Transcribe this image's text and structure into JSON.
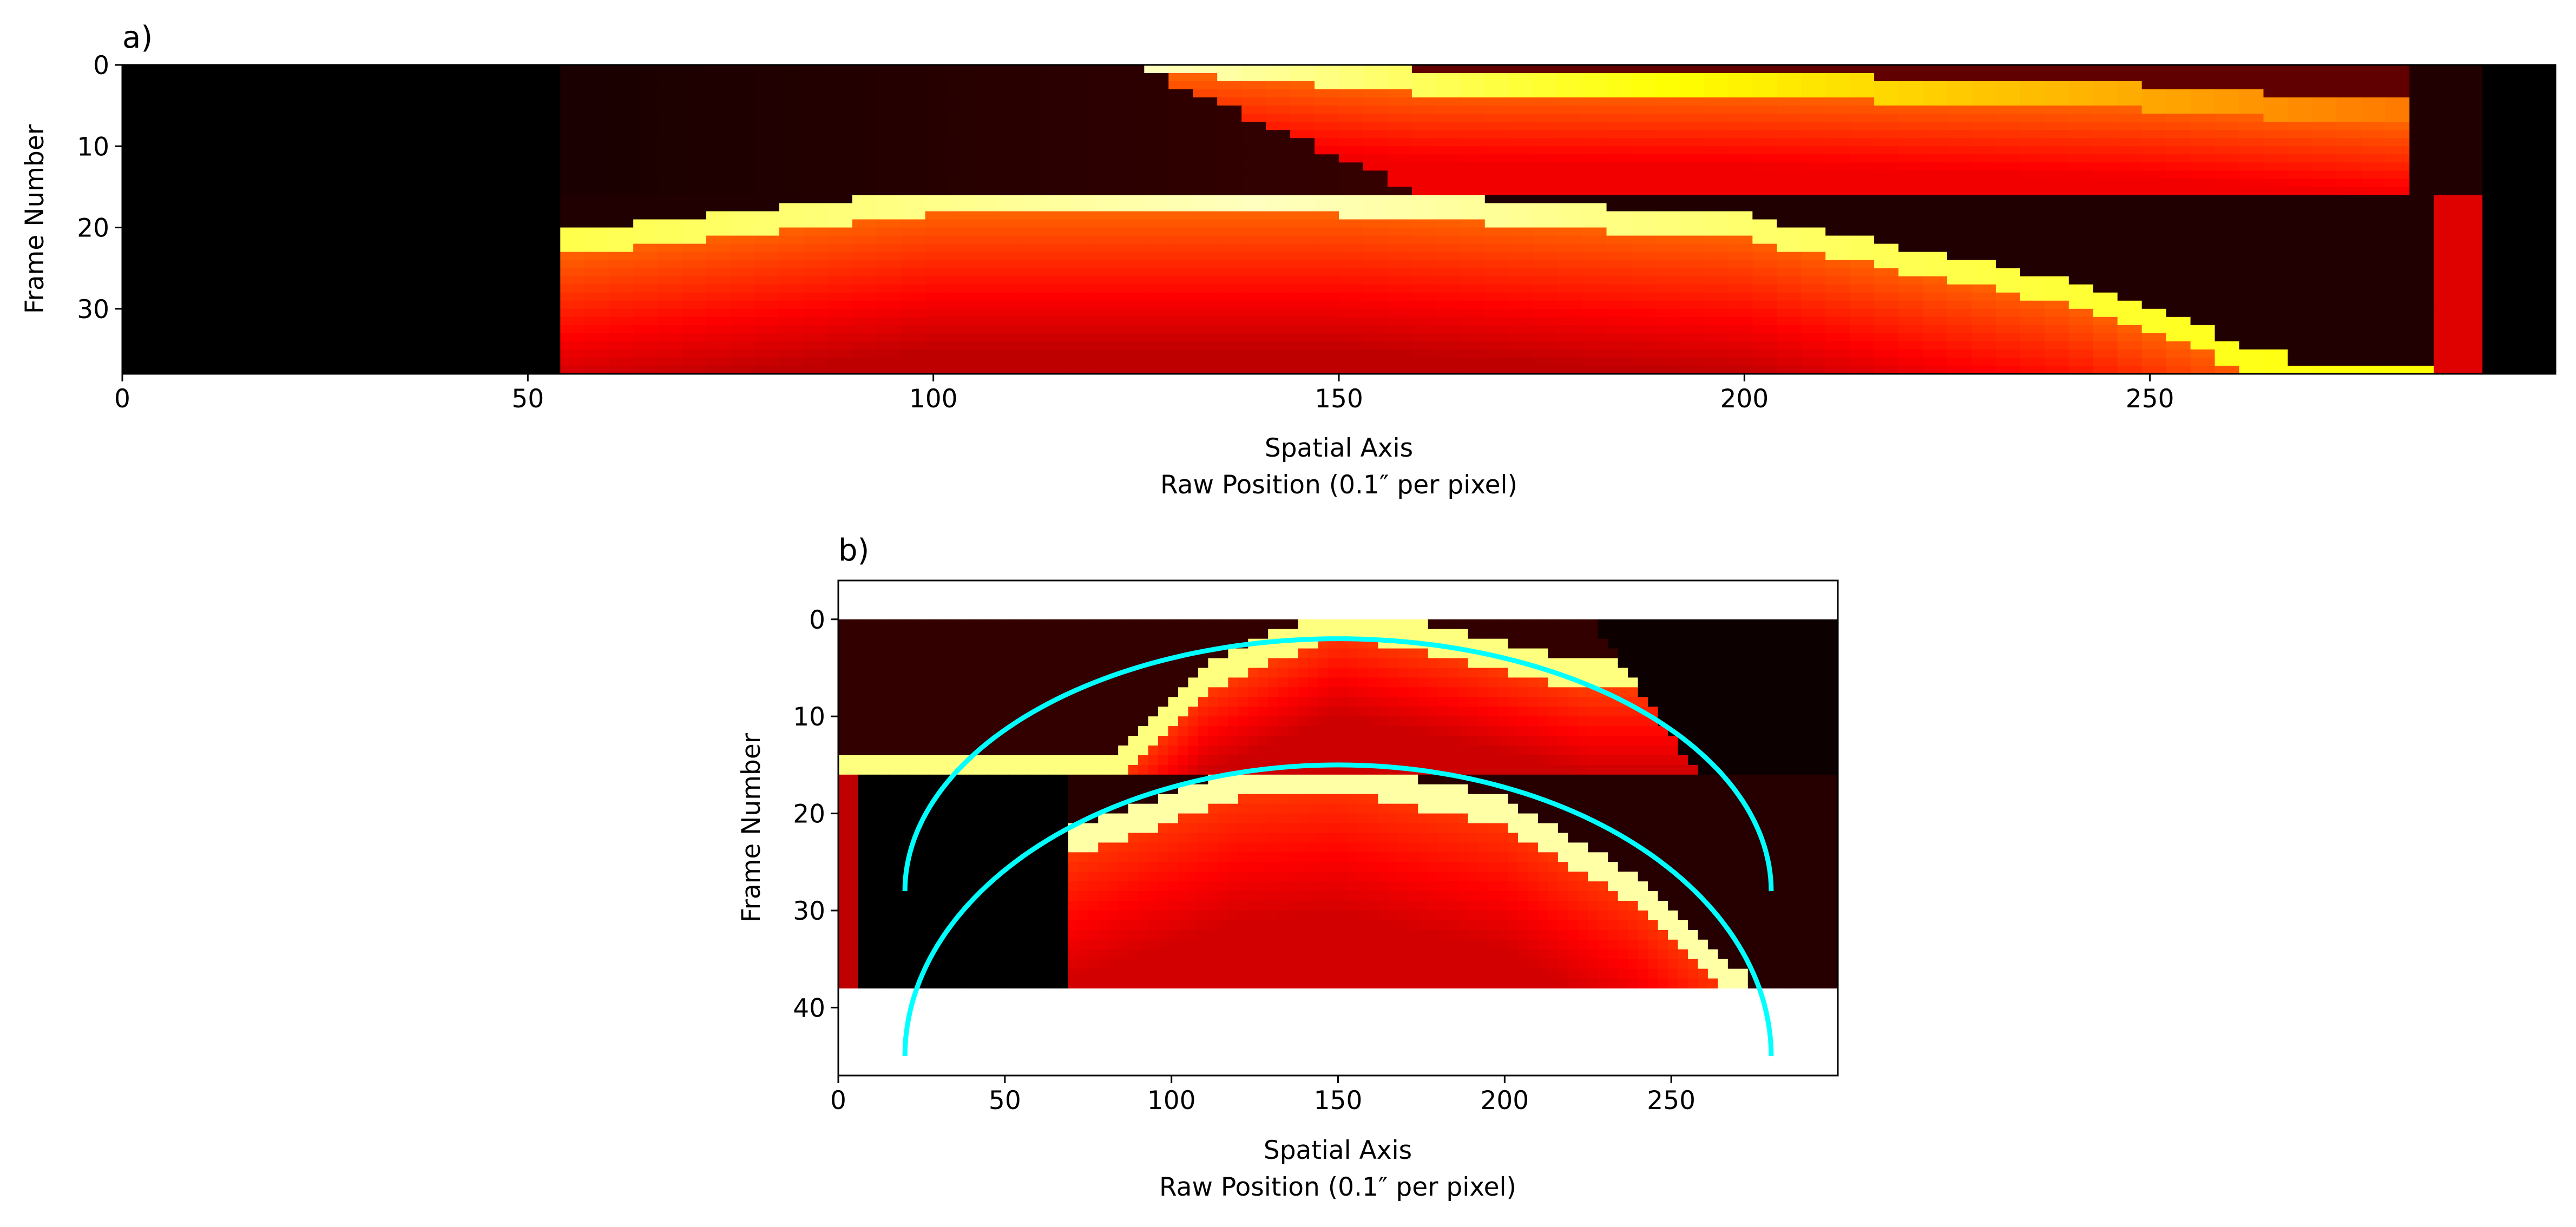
{
  "chart_data": [
    {
      "panel_label": "a)",
      "type": "heatmap",
      "colormap": "gist_heat",
      "xlabel": "Spatial Axis",
      "xlabel2": "Raw Position (0.1″ per pixel)",
      "ylabel": "Frame Number",
      "xlim": [
        0,
        300
      ],
      "ylim": [
        38,
        0
      ],
      "xticks": [
        {
          "v": 0,
          "label": "0"
        },
        {
          "v": 50,
          "label": "50"
        },
        {
          "v": 100,
          "label": "100"
        },
        {
          "v": 150,
          "label": "150"
        },
        {
          "v": 200,
          "label": "200"
        },
        {
          "v": 250,
          "label": "250"
        }
      ],
      "yticks": [
        {
          "v": 0,
          "label": "0"
        },
        {
          "v": 10,
          "label": "10"
        },
        {
          "v": 20,
          "label": "20"
        },
        {
          "v": 30,
          "label": "30"
        }
      ],
      "image_data": {
        "valid_x_range": [
          55,
          290
        ],
        "segments": [
          {
            "frames": [
              0,
              16
            ],
            "ridge": [
              [
                134,
                0
              ],
              [
                160,
                2
              ],
              [
                200,
                2.5
              ],
              [
                250,
                4
              ],
              [
                280,
                6
              ]
            ],
            "lower_edge": [
              [
                125,
                0
              ],
              [
                160,
                16
              ]
            ],
            "right_edge": 282
          },
          {
            "frames": [
              16,
              38
            ],
            "ridge": [
              [
                55,
                22
              ],
              [
                100,
                17
              ],
              [
                150,
                17
              ],
              [
                200,
                20
              ],
              [
                240,
                28
              ],
              [
                265,
                37
              ]
            ],
            "right_limit": 268
          }
        ]
      }
    },
    {
      "panel_label": "b)",
      "type": "heatmap",
      "colormap": "gist_heat",
      "xlabel": "Spatial Axis",
      "xlabel2": "Raw Position (0.1″ per pixel)",
      "ylabel": "Frame Number",
      "xlim": [
        0,
        300
      ],
      "ylim": [
        47,
        -4
      ],
      "xticks": [
        {
          "v": 0,
          "label": "0"
        },
        {
          "v": 50,
          "label": "50"
        },
        {
          "v": 100,
          "label": "100"
        },
        {
          "v": 150,
          "label": "150"
        },
        {
          "v": 200,
          "label": "200"
        },
        {
          "v": 250,
          "label": "250"
        }
      ],
      "yticks": [
        {
          "v": 0,
          "label": "0"
        },
        {
          "v": 10,
          "label": "10"
        },
        {
          "v": 20,
          "label": "20"
        },
        {
          "v": 30,
          "label": "30"
        },
        {
          "v": 40,
          "label": "40"
        }
      ],
      "image_extent": {
        "x": [
          0,
          300
        ],
        "y": [
          0,
          38
        ]
      },
      "image_data": {
        "segments": [
          {
            "frames": [
              0,
              16
            ],
            "ridge": [
              [
                80,
                16
              ],
              [
                110,
                6
              ],
              [
                150,
                0
              ],
              [
                190,
                3
              ],
              [
                225,
                6
              ]
            ],
            "right_edge": 226
          },
          {
            "frames": [
              16,
              38
            ],
            "left_black": [
              5,
              69
            ],
            "ridge": [
              [
                70,
                23
              ],
              [
                120,
                17
              ],
              [
                150,
                16
              ],
              [
                200,
                20
              ],
              [
                240,
                28
              ],
              [
                270,
                38
              ]
            ],
            "right_limit": 272
          }
        ]
      },
      "overlays": [
        {
          "type": "semi-ellipse",
          "color": "#00ffff",
          "center_x": 150,
          "center_y": 28,
          "radius_x": 130,
          "radius_y": 26
        },
        {
          "type": "semi-ellipse",
          "color": "#00ffff",
          "center_x": 150,
          "center_y": 45,
          "radius_x": 130,
          "radius_y": 30
        }
      ]
    }
  ]
}
